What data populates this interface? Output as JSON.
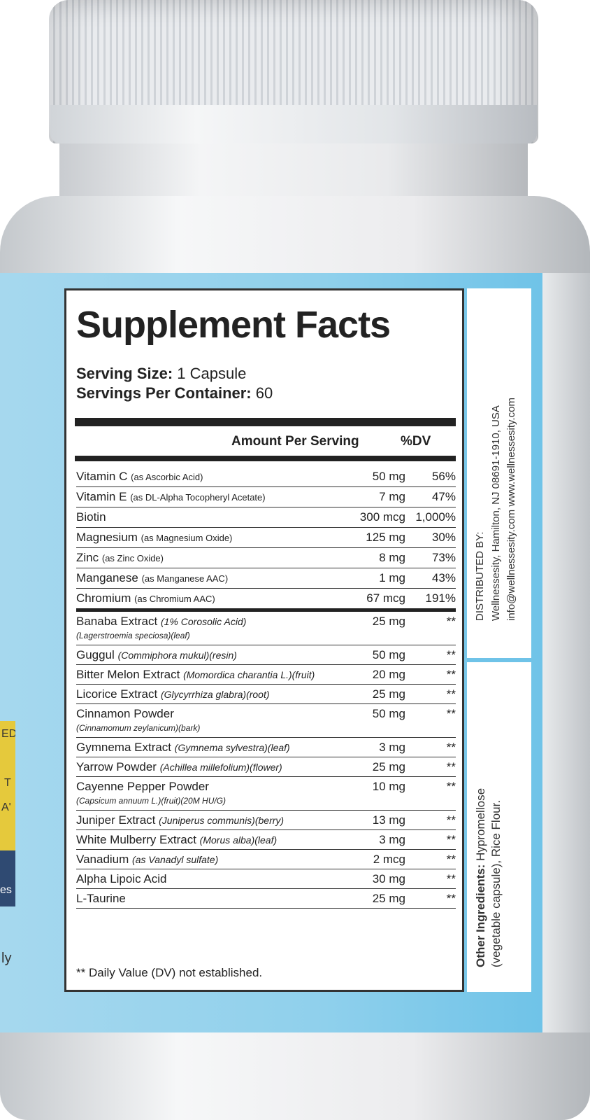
{
  "label": {
    "title": "Supplement Facts",
    "serving_size_label": "Serving Size:",
    "serving_size_value": "1 Capsule",
    "servings_per_container_label": "Servings Per Container:",
    "servings_per_container_value": "60",
    "header_amount": "Amount Per Serving",
    "header_dv": "%DV",
    "rows": [
      {
        "name": "Vitamin C",
        "detail": "(as Ascorbic Acid)",
        "amount": "50 mg",
        "dv": "56%"
      },
      {
        "name": "Vitamin E",
        "detail": "(as DL-Alpha Tocopheryl Acetate)",
        "amount": "7 mg",
        "dv": "47%"
      },
      {
        "name": "Biotin",
        "detail": "",
        "amount": "300 mcg",
        "dv": "1,000%"
      },
      {
        "name": "Magnesium",
        "detail": "(as Magnesium Oxide)",
        "amount": "125 mg",
        "dv": "30%"
      },
      {
        "name": "Zinc",
        "detail": "(as Zinc Oxide)",
        "amount": "8 mg",
        "dv": "73%"
      },
      {
        "name": "Manganese",
        "detail": "(as Manganese AAC)",
        "amount": "1 mg",
        "dv": "43%"
      },
      {
        "name": "Chromium",
        "detail": "(as Chromium AAC)",
        "amount": "67 mcg",
        "dv": "191%"
      },
      {
        "name": "Banaba Extract",
        "detail": "(1% Corosolic Acid)",
        "sub": "(Lagerstroemia speciosa)(leaf)",
        "amount": "25 mg",
        "dv": "**"
      },
      {
        "name": "Guggul",
        "detail": "(Commiphora mukul)(resin)",
        "amount": "50 mg",
        "dv": "**"
      },
      {
        "name": "Bitter Melon Extract",
        "detail": "(Momordica charantia L.)(fruit)",
        "amount": "20 mg",
        "dv": "**"
      },
      {
        "name": "Licorice Extract",
        "detail": "(Glycyrrhiza glabra)(root)",
        "amount": "25 mg",
        "dv": "**"
      },
      {
        "name": "Cinnamon Powder",
        "detail": "",
        "sub": "(Cinnamomum zeylanicum)(bark)",
        "amount": "50 mg",
        "dv": "**"
      },
      {
        "name": "Gymnema Extract",
        "detail": "(Gymnema sylvestra)(leaf)",
        "amount": "3 mg",
        "dv": "**"
      },
      {
        "name": "Yarrow Powder",
        "detail": "(Achillea millefolium)(flower)",
        "amount": "25 mg",
        "dv": "**"
      },
      {
        "name": "Cayenne Pepper Powder",
        "detail": "",
        "sub": "(Capsicum annuum L.)(fruit)(20M HU/G)",
        "amount": "10 mg",
        "dv": "**"
      },
      {
        "name": "Juniper Extract",
        "detail": "(Juniperus communis)(berry)",
        "amount": "13 mg",
        "dv": "**"
      },
      {
        "name": "White Mulberry Extract",
        "detail": "(Morus alba)(leaf)",
        "amount": "3 mg",
        "dv": "**"
      },
      {
        "name": "Vanadium",
        "detail": "(as Vanadyl sulfate)",
        "amount": "2 mcg",
        "dv": "**"
      },
      {
        "name": "Alpha Lipoic Acid",
        "detail": "",
        "amount": "30 mg",
        "dv": "**"
      },
      {
        "name": "L-Taurine",
        "detail": "",
        "amount": "25 mg",
        "dv": "**"
      }
    ],
    "footnote": "** Daily Value (DV) not established."
  },
  "side": {
    "distributed_by": "DISTRIBUTED BY:",
    "address": "Wellnessesity, Hamilton, NJ 08691-1910, USA",
    "contact": "info@wellnessesity.com www.wellnessesity.com",
    "other_ingredients_label": "Other Ingredients:",
    "other_ingredients_line1": "Hypromellose",
    "other_ingredients_line2": "(vegetable capsule),  Rice Flour."
  },
  "left_fragments": {
    "yellow": [
      "ED",
      "T",
      "A'"
    ],
    "navy": "es",
    "bottom": "ly"
  },
  "colors": {
    "band_blue": "#8fd0ec",
    "yellow": "#e5c93c",
    "navy": "#2f4a72",
    "text": "#222222"
  }
}
